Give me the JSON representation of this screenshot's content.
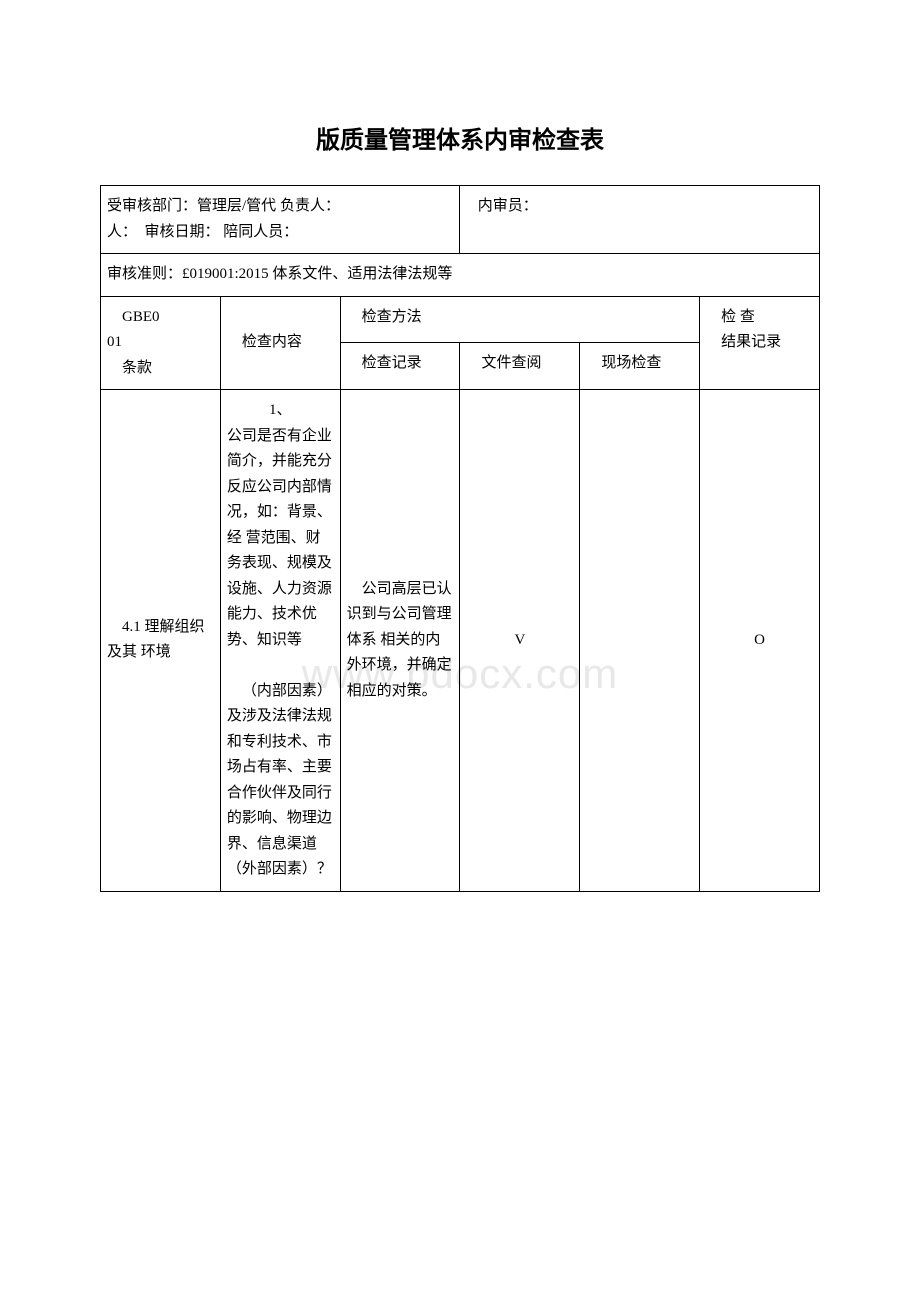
{
  "watermark": "www.bdocx.com",
  "title": "版质量管理体系内审检查表",
  "header": {
    "left_label1": "受审核部门：",
    "left_value1": "管理层/管代",
    "left_label2": "负责人：",
    "left_label3": "审核日期：",
    "left_label4": "陪同人员：",
    "right_label": "内审员："
  },
  "criteria_row": {
    "label": "审核准则：",
    "value": "£019001:2015 体系文件、适用法律法规等"
  },
  "column_headers": {
    "code_line1": "GBE0",
    "code_line2": "01",
    "code_line3": "条款",
    "content": "检查内容",
    "method_header": "检查方法",
    "record": "检查记录",
    "file_review": "文件查阅",
    "site_check": "现场检查",
    "result_line1": "检 查",
    "result_line2": "结果记录"
  },
  "row1": {
    "clause": "4.1 理解组织及其 环境",
    "content_p1": "1、公司是否有企业简介，并能充分反应公司内部情况，如：背景、经 营范围、财务表现、规模及设施、人力资源能力、技术优势、知识等",
    "content_p2": "（内部因素）及涉及法律法规和专利技术、市场占有率、主要合作伙伴及同行的影响、物理边界、信息渠道（外部因素）？",
    "record": "公司高层已认识到与公司管理体系 相关的内外环境，并确定相应的对策。",
    "file_review": "V",
    "site_check": "",
    "result": "O"
  }
}
